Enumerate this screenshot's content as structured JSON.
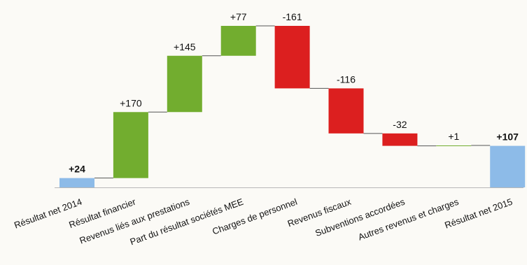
{
  "chart_data": {
    "type": "waterfall",
    "categories": [
      "Résultat net 2014",
      "Résultat financier",
      "Revenus liés aux prestations",
      "Part du résultat sociétés MEE",
      "Charges de personnel",
      "Revenus fiscaux",
      "Subventions accordées",
      "Autres revenus et charges",
      "Résultat net 2015"
    ],
    "values": [
      24,
      170,
      145,
      77,
      -161,
      -116,
      -32,
      1,
      107
    ],
    "value_labels": [
      "+24",
      "+170",
      "+145",
      "+77",
      "-161",
      "-116",
      "-32",
      "+1",
      "+107"
    ],
    "is_total": [
      true,
      false,
      false,
      false,
      false,
      false,
      false,
      false,
      true
    ],
    "colors": [
      "#8dbbe8",
      "#72ad2f",
      "#72ad2f",
      "#72ad2f",
      "#dc1f1f",
      "#dc1f1f",
      "#dc1f1f",
      "#72ad2f",
      "#8dbbe8"
    ]
  }
}
